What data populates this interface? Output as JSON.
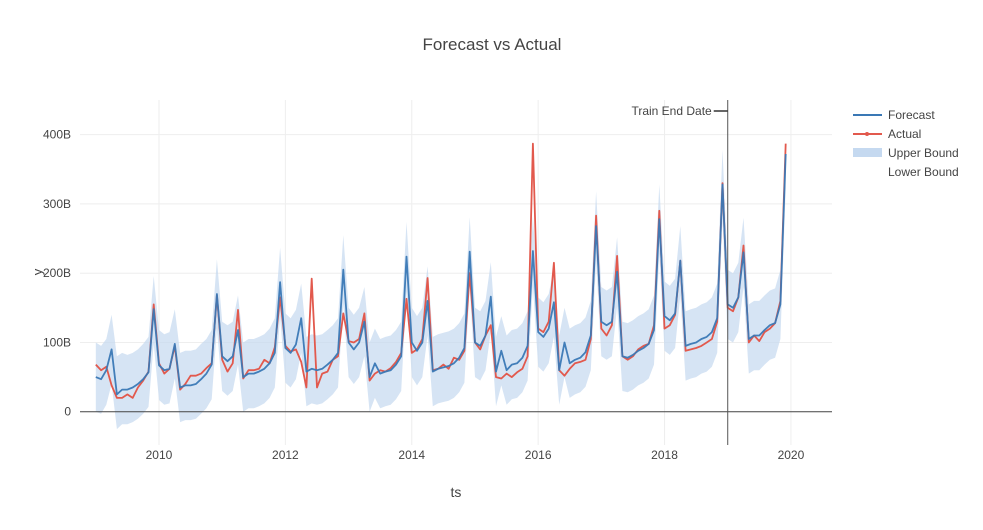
{
  "chart_data": {
    "type": "line",
    "title": "Forecast vs Actual",
    "xlabel": "ts",
    "ylabel": "y",
    "x_range": [
      2008.75,
      2020.65
    ],
    "y_range": [
      -48,
      450
    ],
    "y_ticks": [
      {
        "value": 0,
        "label": "0"
      },
      {
        "value": 100,
        "label": "100B"
      },
      {
        "value": 200,
        "label": "200B"
      },
      {
        "value": 300,
        "label": "300B"
      },
      {
        "value": 400,
        "label": "400B"
      }
    ],
    "x_ticks": [
      {
        "value": 2010,
        "label": "2010"
      },
      {
        "value": 2012,
        "label": "2012"
      },
      {
        "value": 2014,
        "label": "2014"
      },
      {
        "value": 2016,
        "label": "2016"
      },
      {
        "value": 2018,
        "label": "2018"
      },
      {
        "value": 2020,
        "label": "2020"
      }
    ],
    "grid": true,
    "legend_position": "top-right",
    "annotation": {
      "text": "Train End Date",
      "x": 2019.0
    },
    "colors": {
      "forecast": "#3a78b5",
      "actual": "#e2594d",
      "band": "#c5d9f0",
      "axis": "#444444",
      "grid": "#eeeeee"
    },
    "x_start": 2009.0,
    "x_step": 0.0833333,
    "series": [
      {
        "name": "Forecast",
        "values": [
          50,
          47,
          60,
          90,
          25,
          32,
          32,
          35,
          40,
          47,
          57,
          148,
          67,
          60,
          62,
          98,
          35,
          38,
          38,
          40,
          47,
          55,
          68,
          170,
          80,
          73,
          80,
          118,
          50,
          55,
          55,
          58,
          62,
          70,
          85,
          187,
          92,
          85,
          97,
          135,
          58,
          62,
          60,
          62,
          68,
          75,
          85,
          205,
          100,
          90,
          100,
          130,
          50,
          70,
          55,
          58,
          60,
          68,
          80,
          224,
          100,
          88,
          100,
          160,
          58,
          62,
          64,
          66,
          70,
          78,
          92,
          231,
          100,
          95,
          110,
          166,
          58,
          88,
          60,
          68,
          70,
          78,
          95,
          232,
          115,
          108,
          120,
          158,
          60,
          100,
          70,
          75,
          78,
          86,
          110,
          268,
          130,
          125,
          130,
          202,
          80,
          78,
          82,
          88,
          92,
          98,
          118,
          278,
          138,
          132,
          142,
          218,
          95,
          98,
          100,
          105,
          108,
          115,
          135,
          328,
          155,
          150,
          165,
          230,
          105,
          110,
          110,
          118,
          125,
          128,
          155,
          372
        ]
      },
      {
        "name": "Actual",
        "values": [
          68,
          60,
          65,
          38,
          20,
          20,
          25,
          20,
          35,
          45,
          58,
          155,
          70,
          55,
          62,
          95,
          32,
          40,
          52,
          52,
          55,
          63,
          70,
          168,
          75,
          58,
          70,
          147,
          48,
          60,
          60,
          62,
          75,
          70,
          93,
          165,
          95,
          87,
          90,
          72,
          35,
          192,
          35,
          55,
          58,
          75,
          80,
          142,
          102,
          100,
          105,
          142,
          45,
          55,
          60,
          58,
          63,
          72,
          85,
          163,
          85,
          90,
          105,
          193,
          60,
          62,
          68,
          62,
          78,
          75,
          88,
          200,
          100,
          90,
          110,
          125,
          50,
          48,
          55,
          50,
          57,
          62,
          80,
          387,
          120,
          115,
          130,
          215,
          60,
          52,
          62,
          70,
          72,
          75,
          105,
          283,
          120,
          110,
          125,
          225,
          80,
          75,
          80,
          90,
          95,
          98,
          125,
          290,
          120,
          125,
          140,
          218,
          88,
          90,
          92,
          95,
          100,
          105,
          130,
          330,
          150,
          145,
          165,
          240,
          100,
          110,
          102,
          115,
          120,
          128,
          160,
          387
        ]
      },
      {
        "name": "Upper Bound",
        "values": [
          100,
          95,
          105,
          140,
          80,
          85,
          82,
          85,
          90,
          98,
          108,
          196,
          118,
          112,
          115,
          148,
          85,
          88,
          88,
          90,
          98,
          105,
          118,
          220,
          130,
          125,
          130,
          168,
          100,
          105,
          105,
          108,
          112,
          120,
          135,
          237,
          142,
          135,
          147,
          185,
          108,
          112,
          110,
          112,
          118,
          125,
          135,
          255,
          150,
          140,
          150,
          180,
          100,
          120,
          105,
          108,
          110,
          118,
          130,
          274,
          150,
          138,
          150,
          210,
          108,
          112,
          114,
          116,
          120,
          128,
          142,
          281,
          150,
          145,
          160,
          216,
          108,
          138,
          110,
          118,
          120,
          128,
          145,
          282,
          165,
          158,
          170,
          208,
          110,
          150,
          120,
          125,
          128,
          136,
          160,
          318,
          180,
          175,
          180,
          252,
          130,
          128,
          132,
          138,
          142,
          148,
          168,
          328,
          188,
          182,
          192,
          268,
          145,
          148,
          150,
          155,
          158,
          165,
          185,
          378,
          205,
          200,
          215,
          280,
          155,
          160,
          160,
          168,
          175,
          178,
          205,
          385
        ]
      },
      {
        "name": "Lower Bound",
        "values": [
          0,
          -3,
          10,
          40,
          -25,
          -18,
          -18,
          -15,
          -10,
          -3,
          7,
          98,
          17,
          10,
          12,
          48,
          -15,
          -12,
          -12,
          -10,
          -3,
          5,
          18,
          120,
          30,
          23,
          30,
          68,
          0,
          5,
          5,
          8,
          12,
          20,
          35,
          137,
          42,
          35,
          47,
          85,
          8,
          12,
          10,
          12,
          18,
          25,
          35,
          155,
          50,
          40,
          50,
          80,
          0,
          20,
          5,
          8,
          10,
          18,
          30,
          174,
          50,
          38,
          50,
          110,
          8,
          12,
          14,
          16,
          20,
          28,
          42,
          181,
          50,
          45,
          60,
          116,
          8,
          38,
          10,
          18,
          20,
          28,
          45,
          182,
          65,
          58,
          70,
          108,
          10,
          50,
          20,
          25,
          28,
          36,
          60,
          218,
          80,
          75,
          80,
          152,
          30,
          28,
          32,
          38,
          42,
          48,
          68,
          228,
          88,
          82,
          92,
          168,
          45,
          48,
          50,
          55,
          58,
          65,
          85,
          278,
          105,
          100,
          115,
          180,
          55,
          60,
          60,
          68,
          75,
          78,
          105,
          322
        ]
      }
    ]
  }
}
